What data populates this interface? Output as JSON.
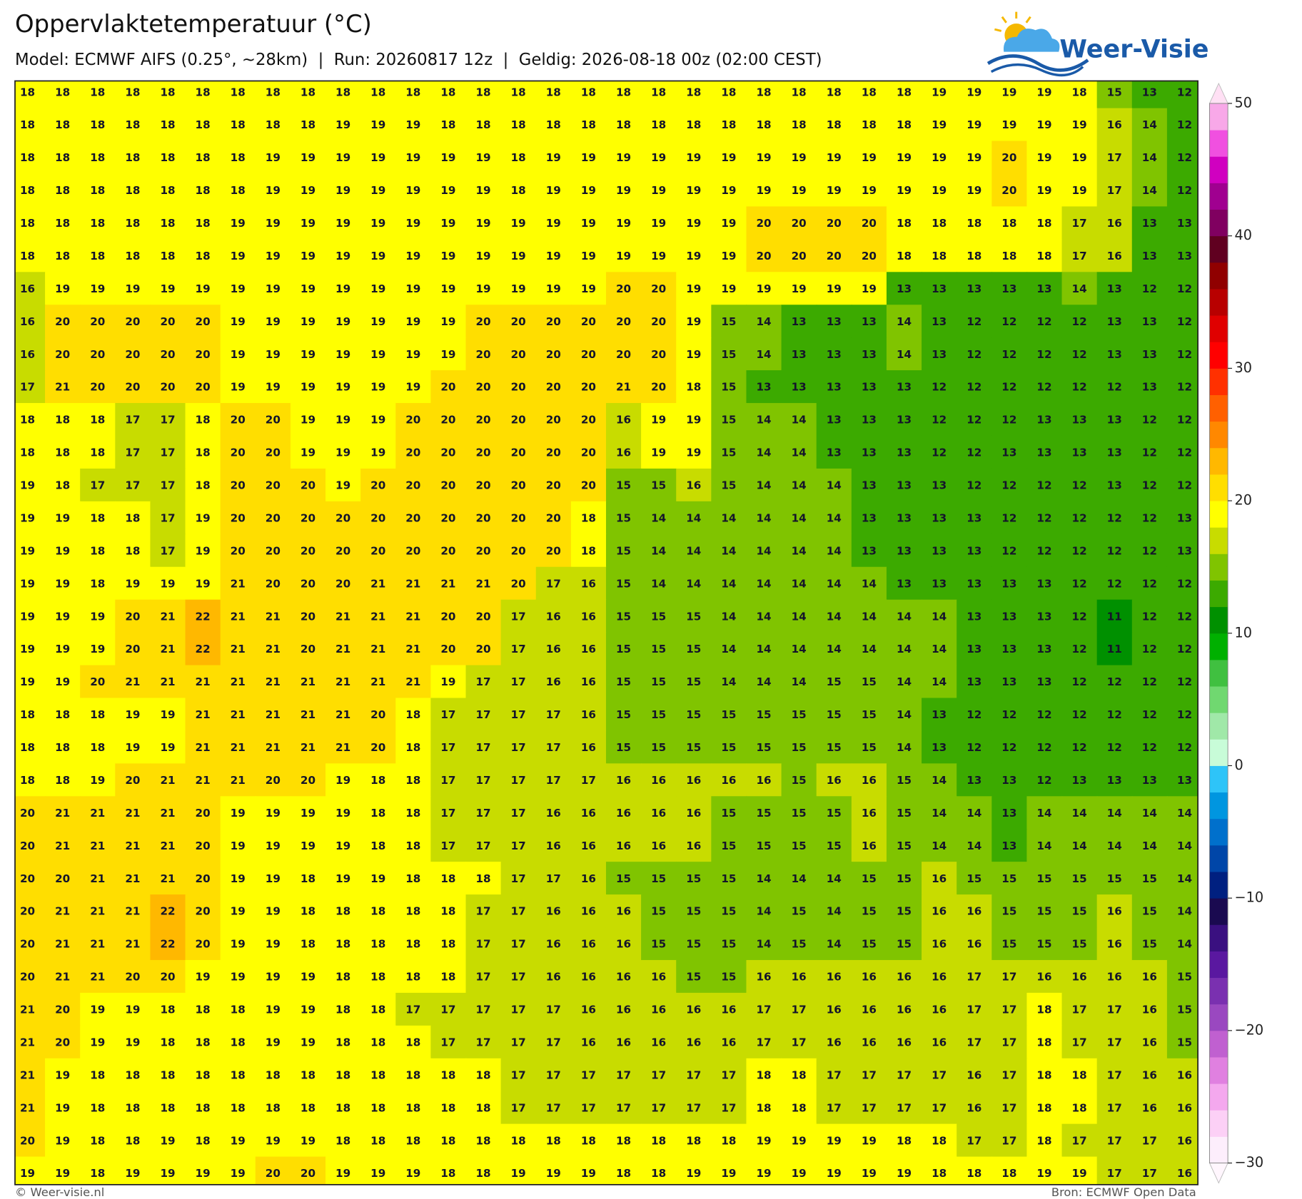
{
  "header": {
    "title": "Oppervlaktetemperatuur (°C)",
    "subtitle": "Model: ECMWF AIFS (0.25°, ~28km)  |  Run: 20260817 12z  |  Geldig: 2026-08-18 00z (02:00 CEST)",
    "logo": "Weer-Visie"
  },
  "map": {
    "values": [
      [
        18,
        18,
        18,
        18,
        18,
        18,
        18,
        18,
        18,
        18,
        18,
        18,
        18,
        18,
        18,
        18,
        18,
        18,
        18,
        18,
        18,
        18,
        18,
        18,
        18,
        18,
        19,
        19,
        19,
        19,
        18,
        15,
        13,
        12
      ],
      [
        18,
        18,
        18,
        18,
        18,
        18,
        18,
        18,
        18,
        19,
        19,
        19,
        18,
        18,
        18,
        18,
        18,
        18,
        18,
        18,
        18,
        18,
        18,
        18,
        18,
        18,
        19,
        19,
        19,
        19,
        19,
        16,
        14,
        12
      ],
      [
        18,
        18,
        18,
        18,
        18,
        18,
        18,
        19,
        19,
        19,
        19,
        19,
        19,
        19,
        18,
        19,
        19,
        19,
        19,
        19,
        19,
        19,
        19,
        19,
        19,
        19,
        19,
        19,
        20,
        19,
        19,
        17,
        14,
        12
      ],
      [
        18,
        18,
        18,
        18,
        18,
        18,
        18,
        19,
        19,
        19,
        19,
        19,
        19,
        19,
        18,
        19,
        19,
        19,
        19,
        19,
        19,
        19,
        19,
        19,
        19,
        19,
        19,
        19,
        20,
        19,
        19,
        17,
        14,
        12
      ],
      [
        18,
        18,
        18,
        18,
        18,
        18,
        19,
        19,
        19,
        19,
        19,
        19,
        19,
        19,
        19,
        19,
        19,
        19,
        19,
        19,
        19,
        20,
        20,
        20,
        20,
        18,
        18,
        18,
        18,
        18,
        17,
        16,
        13,
        13
      ],
      [
        18,
        18,
        18,
        18,
        18,
        18,
        19,
        19,
        19,
        19,
        19,
        19,
        19,
        19,
        19,
        19,
        19,
        19,
        19,
        19,
        19,
        20,
        20,
        20,
        20,
        18,
        18,
        18,
        18,
        18,
        17,
        16,
        13,
        13
      ],
      [
        16,
        19,
        19,
        19,
        19,
        19,
        19,
        19,
        19,
        19,
        19,
        19,
        19,
        19,
        19,
        19,
        19,
        20,
        20,
        19,
        19,
        19,
        19,
        19,
        19,
        13,
        13,
        13,
        13,
        13,
        14,
        13,
        12,
        12
      ],
      [
        16,
        20,
        20,
        20,
        20,
        20,
        19,
        19,
        19,
        19,
        19,
        19,
        19,
        20,
        20,
        20,
        20,
        20,
        20,
        19,
        15,
        14,
        13,
        13,
        13,
        14,
        13,
        12,
        12,
        12,
        12,
        13,
        13,
        12
      ],
      [
        16,
        20,
        20,
        20,
        20,
        20,
        19,
        19,
        19,
        19,
        19,
        19,
        19,
        20,
        20,
        20,
        20,
        20,
        20,
        19,
        15,
        14,
        13,
        13,
        13,
        14,
        13,
        12,
        12,
        12,
        12,
        13,
        13,
        12
      ],
      [
        17,
        21,
        20,
        20,
        20,
        20,
        19,
        19,
        19,
        19,
        19,
        19,
        20,
        20,
        20,
        20,
        20,
        21,
        20,
        18,
        15,
        13,
        13,
        13,
        13,
        13,
        12,
        12,
        12,
        12,
        12,
        12,
        13,
        12
      ],
      [
        18,
        18,
        18,
        17,
        17,
        18,
        20,
        20,
        19,
        19,
        19,
        20,
        20,
        20,
        20,
        20,
        20,
        16,
        19,
        19,
        15,
        14,
        14,
        13,
        13,
        13,
        12,
        12,
        12,
        13,
        13,
        13,
        12,
        12
      ],
      [
        18,
        18,
        18,
        17,
        17,
        18,
        20,
        20,
        19,
        19,
        19,
        20,
        20,
        20,
        20,
        20,
        20,
        16,
        19,
        19,
        15,
        14,
        14,
        13,
        13,
        13,
        12,
        12,
        13,
        13,
        13,
        13,
        12,
        12
      ],
      [
        19,
        18,
        17,
        17,
        17,
        18,
        20,
        20,
        20,
        19,
        20,
        20,
        20,
        20,
        20,
        20,
        20,
        15,
        15,
        16,
        15,
        14,
        14,
        14,
        13,
        13,
        13,
        12,
        12,
        12,
        12,
        13,
        12,
        12
      ],
      [
        19,
        19,
        18,
        18,
        17,
        19,
        20,
        20,
        20,
        20,
        20,
        20,
        20,
        20,
        20,
        20,
        18,
        15,
        14,
        14,
        14,
        14,
        14,
        14,
        13,
        13,
        13,
        13,
        12,
        12,
        12,
        12,
        12,
        13
      ],
      [
        19,
        19,
        18,
        18,
        17,
        19,
        20,
        20,
        20,
        20,
        20,
        20,
        20,
        20,
        20,
        20,
        18,
        15,
        14,
        14,
        14,
        14,
        14,
        14,
        13,
        13,
        13,
        13,
        12,
        12,
        12,
        12,
        12,
        13
      ],
      [
        19,
        19,
        18,
        19,
        19,
        19,
        21,
        20,
        20,
        20,
        21,
        21,
        21,
        21,
        20,
        17,
        16,
        15,
        14,
        14,
        14,
        14,
        14,
        14,
        14,
        13,
        13,
        13,
        13,
        13,
        12,
        12,
        12,
        12
      ],
      [
        19,
        19,
        19,
        20,
        21,
        22,
        21,
        21,
        20,
        21,
        21,
        21,
        20,
        20,
        17,
        16,
        16,
        15,
        15,
        15,
        14,
        14,
        14,
        14,
        14,
        14,
        14,
        13,
        13,
        13,
        12,
        11,
        12,
        12
      ],
      [
        19,
        19,
        19,
        20,
        21,
        22,
        21,
        21,
        20,
        21,
        21,
        21,
        20,
        20,
        17,
        16,
        16,
        15,
        15,
        15,
        14,
        14,
        14,
        14,
        14,
        14,
        14,
        13,
        13,
        13,
        12,
        11,
        12,
        12
      ],
      [
        19,
        19,
        20,
        21,
        21,
        21,
        21,
        21,
        21,
        21,
        21,
        21,
        19,
        17,
        17,
        16,
        16,
        15,
        15,
        15,
        14,
        14,
        14,
        15,
        15,
        14,
        14,
        13,
        13,
        13,
        12,
        12,
        12,
        12
      ],
      [
        18,
        18,
        18,
        19,
        19,
        21,
        21,
        21,
        21,
        21,
        20,
        18,
        17,
        17,
        17,
        17,
        16,
        15,
        15,
        15,
        15,
        15,
        15,
        15,
        15,
        14,
        13,
        12,
        12,
        12,
        12,
        12,
        12,
        12
      ],
      [
        18,
        18,
        18,
        19,
        19,
        21,
        21,
        21,
        21,
        21,
        20,
        18,
        17,
        17,
        17,
        17,
        16,
        15,
        15,
        15,
        15,
        15,
        15,
        15,
        15,
        14,
        13,
        12,
        12,
        12,
        12,
        12,
        12,
        12
      ],
      [
        18,
        18,
        19,
        20,
        21,
        21,
        21,
        20,
        20,
        19,
        18,
        18,
        17,
        17,
        17,
        17,
        17,
        16,
        16,
        16,
        16,
        16,
        15,
        16,
        16,
        15,
        14,
        13,
        13,
        12,
        13,
        13,
        13,
        13
      ],
      [
        20,
        21,
        21,
        21,
        21,
        20,
        19,
        19,
        19,
        19,
        18,
        18,
        17,
        17,
        17,
        16,
        16,
        16,
        16,
        16,
        15,
        15,
        15,
        15,
        16,
        15,
        14,
        14,
        13,
        14,
        14,
        14,
        14,
        14
      ],
      [
        20,
        21,
        21,
        21,
        21,
        20,
        19,
        19,
        19,
        19,
        18,
        18,
        17,
        17,
        17,
        16,
        16,
        16,
        16,
        16,
        15,
        15,
        15,
        15,
        16,
        15,
        14,
        14,
        13,
        14,
        14,
        14,
        14,
        14
      ],
      [
        20,
        20,
        21,
        21,
        21,
        20,
        19,
        19,
        18,
        19,
        19,
        18,
        18,
        18,
        17,
        17,
        16,
        15,
        15,
        15,
        15,
        14,
        14,
        14,
        15,
        15,
        16,
        15,
        15,
        15,
        15,
        15,
        15,
        14
      ],
      [
        20,
        21,
        21,
        21,
        22,
        20,
        19,
        19,
        18,
        18,
        18,
        18,
        18,
        17,
        17,
        16,
        16,
        16,
        15,
        15,
        15,
        14,
        15,
        14,
        15,
        15,
        16,
        16,
        15,
        15,
        15,
        16,
        15,
        14
      ],
      [
        20,
        21,
        21,
        21,
        22,
        20,
        19,
        19,
        18,
        18,
        18,
        18,
        18,
        17,
        17,
        16,
        16,
        16,
        15,
        15,
        15,
        14,
        15,
        14,
        15,
        15,
        16,
        16,
        15,
        15,
        15,
        16,
        15,
        14
      ],
      [
        20,
        21,
        21,
        20,
        20,
        19,
        19,
        19,
        19,
        18,
        18,
        18,
        18,
        17,
        17,
        16,
        16,
        16,
        16,
        15,
        15,
        16,
        16,
        16,
        16,
        16,
        16,
        17,
        17,
        16,
        16,
        16,
        16,
        15
      ],
      [
        21,
        20,
        19,
        19,
        18,
        18,
        18,
        19,
        19,
        18,
        18,
        17,
        17,
        17,
        17,
        17,
        16,
        16,
        16,
        16,
        16,
        17,
        17,
        16,
        16,
        16,
        16,
        17,
        17,
        18,
        17,
        17,
        16,
        15
      ],
      [
        21,
        20,
        19,
        19,
        18,
        18,
        18,
        19,
        19,
        18,
        18,
        18,
        17,
        17,
        17,
        17,
        16,
        16,
        16,
        16,
        16,
        17,
        17,
        16,
        16,
        16,
        16,
        17,
        17,
        18,
        17,
        17,
        16,
        15
      ],
      [
        21,
        19,
        18,
        18,
        18,
        18,
        18,
        18,
        18,
        18,
        18,
        18,
        18,
        18,
        17,
        17,
        17,
        17,
        17,
        17,
        17,
        18,
        18,
        17,
        17,
        17,
        17,
        16,
        17,
        18,
        18,
        17,
        16,
        16
      ],
      [
        21,
        19,
        18,
        18,
        18,
        18,
        18,
        18,
        18,
        18,
        18,
        18,
        18,
        18,
        17,
        17,
        17,
        17,
        17,
        17,
        17,
        18,
        18,
        17,
        17,
        17,
        17,
        16,
        17,
        18,
        18,
        17,
        16,
        16
      ],
      [
        20,
        19,
        18,
        18,
        19,
        18,
        19,
        19,
        19,
        18,
        18,
        18,
        18,
        18,
        18,
        18,
        18,
        18,
        18,
        18,
        18,
        19,
        19,
        19,
        19,
        18,
        18,
        17,
        17,
        18,
        17,
        17,
        17,
        16
      ],
      [
        19,
        19,
        18,
        19,
        19,
        19,
        19,
        20,
        20,
        19,
        19,
        19,
        18,
        18,
        19,
        19,
        19,
        18,
        18,
        19,
        19,
        19,
        19,
        19,
        19,
        19,
        18,
        18,
        18,
        19,
        19,
        17,
        17,
        16
      ]
    ]
  },
  "colorbar": {
    "clim": [
      -30,
      50
    ],
    "ticks": [
      50,
      40,
      30,
      20,
      10,
      0,
      {
        "value": -10,
        "label": "−10"
      },
      {
        "value": -20,
        "label": "−20"
      },
      {
        "value": -30,
        "label": "−30"
      }
    ],
    "colors": [
      "#fdeefc",
      "#fcd0f6",
      "#f4a8ee",
      "#e080e0",
      "#c060d0",
      "#9a48c0",
      "#7a30b0",
      "#5a18a0",
      "#3a1080",
      "#1a0a50",
      "#002080",
      "#0046a8",
      "#0070cc",
      "#0096e0",
      "#2ec4f8",
      "#c8fcd8",
      "#a0e8a8",
      "#70d870",
      "#40c040",
      "#00b000",
      "#009000",
      "#3caa00",
      "#80c400",
      "#c8dc00",
      "#ffff00",
      "#ffde00",
      "#ffb800",
      "#ff8800",
      "#ff6000",
      "#ff3000",
      "#ff0000",
      "#e00000",
      "#b80000",
      "#900000",
      "#600020",
      "#800060",
      "#a00090",
      "#d000c0",
      "#f050e0",
      "#f8a8e8"
    ],
    "under_color": "#fff6fd",
    "over_color": "#ffe0f4"
  },
  "footer": {
    "left": "© Weer-visie.nl",
    "right": "Bron: ECMWF Open Data"
  }
}
